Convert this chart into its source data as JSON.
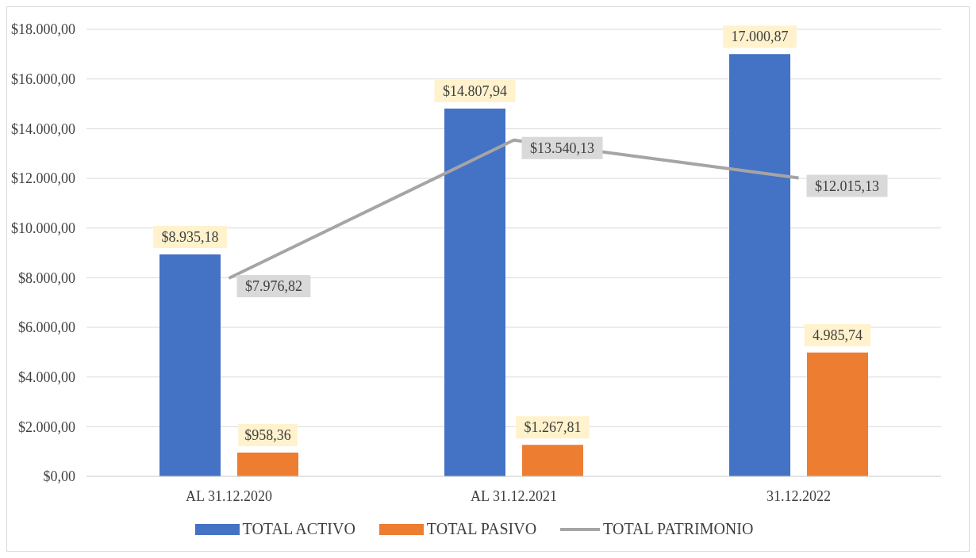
{
  "chart_data": {
    "type": "bar",
    "categories": [
      "AL 31.12.2020",
      "AL 31.12.2021",
      "31.12.2022"
    ],
    "series": [
      {
        "name": "TOTAL ACTIVO",
        "color": "#4472c4",
        "values": [
          8935.18,
          14807.94,
          17000.87
        ],
        "value_labels": [
          "$8.935,18",
          "$14.807,94",
          "17.000,87"
        ]
      },
      {
        "name": "TOTAL PASIVO",
        "color": "#ed7d31",
        "values": [
          958.36,
          1267.81,
          4985.74
        ],
        "value_labels": [
          "$958,36",
          "$1.267,81",
          "4.985,74"
        ]
      },
      {
        "name": "TOTAL PATRIMONIO",
        "type": "line",
        "color": "#a5a5a5",
        "values": [
          7976.82,
          13540.13,
          12015.13
        ],
        "value_labels": [
          "$7.976,82",
          "$13.540,13",
          "$12.015,13"
        ]
      }
    ],
    "ylim": [
      0,
      18000
    ],
    "yticks": [
      {
        "value": 0,
        "label": "$0,00"
      },
      {
        "value": 2000,
        "label": "$2.000,00"
      },
      {
        "value": 4000,
        "label": "$4.000,00"
      },
      {
        "value": 6000,
        "label": "$6.000,00"
      },
      {
        "value": 8000,
        "label": "$8.000,00"
      },
      {
        "value": 10000,
        "label": "$10.000,00"
      },
      {
        "value": 12000,
        "label": "$12.000,00"
      },
      {
        "value": 14000,
        "label": "$14.000,00"
      },
      {
        "value": 16000,
        "label": "$16.000,00"
      },
      {
        "value": 18000,
        "label": "$18.000,00"
      }
    ],
    "grid": "y",
    "legend": "bottom",
    "marker": "none",
    "line_style": "solid"
  }
}
